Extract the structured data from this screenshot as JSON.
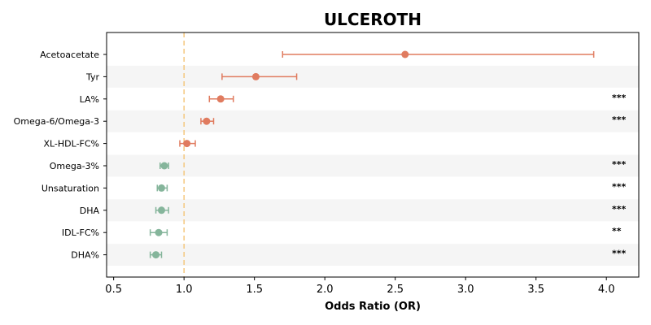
{
  "chart_data": {
    "type": "forest",
    "title": "ULCEROTH",
    "xlabel": "Odds Ratio (OR)",
    "xlim": [
      0.45,
      4.23
    ],
    "xticks": [
      "0.5",
      "1.0",
      "1.5",
      "2.0",
      "2.5",
      "3.0",
      "3.5",
      "4.0"
    ],
    "xtick_values": [
      0.5,
      1.0,
      1.5,
      2.0,
      2.5,
      3.0,
      3.5,
      4.0
    ],
    "reference_line": 1.0,
    "grid": false,
    "colors": {
      "positive": "#e07b5f",
      "negative": "#85b59b",
      "reference": "#f5c77e",
      "stripe": "#f5f5f5"
    },
    "rows": [
      {
        "label": "Acetoacetate",
        "or": 2.57,
        "ci_low": 1.7,
        "ci_high": 3.91,
        "sig": ""
      },
      {
        "label": "Tyr",
        "or": 1.51,
        "ci_low": 1.27,
        "ci_high": 1.8,
        "sig": ""
      },
      {
        "label": "LA%",
        "or": 1.26,
        "ci_low": 1.18,
        "ci_high": 1.35,
        "sig": "***"
      },
      {
        "label": "Omega-6/Omega-3",
        "or": 1.16,
        "ci_low": 1.12,
        "ci_high": 1.21,
        "sig": "***"
      },
      {
        "label": "XL-HDL-FC%",
        "or": 1.02,
        "ci_low": 0.97,
        "ci_high": 1.08,
        "sig": ""
      },
      {
        "label": "Omega-3%",
        "or": 0.86,
        "ci_low": 0.83,
        "ci_high": 0.89,
        "sig": "***"
      },
      {
        "label": "Unsaturation",
        "or": 0.84,
        "ci_low": 0.81,
        "ci_high": 0.88,
        "sig": "***"
      },
      {
        "label": "DHA",
        "or": 0.84,
        "ci_low": 0.8,
        "ci_high": 0.89,
        "sig": "***"
      },
      {
        "label": "IDL-FC%",
        "or": 0.82,
        "ci_low": 0.76,
        "ci_high": 0.88,
        "sig": "**"
      },
      {
        "label": "DHA%",
        "or": 0.8,
        "ci_low": 0.76,
        "ci_high": 0.84,
        "sig": "***"
      }
    ]
  }
}
